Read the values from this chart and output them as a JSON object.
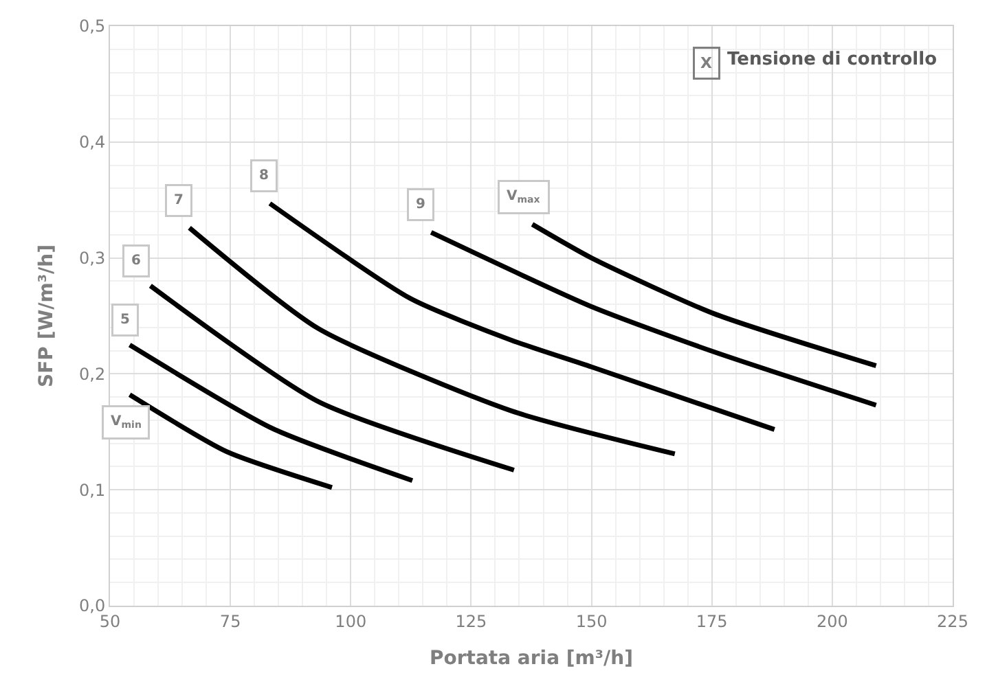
{
  "chart_data": {
    "type": "line",
    "xlabel": "Portata aria [m³/h]",
    "ylabel": "SFP [W/m³/h]",
    "xlim": [
      50,
      225
    ],
    "xticks": [
      50,
      75,
      100,
      125,
      150,
      175,
      200,
      225
    ],
    "ylim": [
      0,
      0.5
    ],
    "yticks": [
      {
        "value": 0,
        "label": "0,0"
      },
      {
        "value": 0.1,
        "label": "0,1"
      },
      {
        "value": 0.2,
        "label": "0,2"
      },
      {
        "value": 0.3,
        "label": "0,3"
      },
      {
        "value": 0.4,
        "label": "0,4"
      },
      {
        "value": 0.5,
        "label": "0,5"
      }
    ],
    "grid": true,
    "legend": false,
    "marker": "none",
    "line_style": "solid",
    "annotations": [
      "X",
      "Tensione di controllo"
    ],
    "series": [
      {
        "name": "V$_{min}$",
        "color": "#000000",
        "x": [
          54.1,
          74.2,
          96.1
        ],
        "values": [
          0.182,
          0.133,
          0.102
        ]
      },
      {
        "name": "5",
        "color": "#000000",
        "x": [
          54.1,
          83.7,
          112.8
        ],
        "values": [
          0.225,
          0.153,
          0.108
        ]
      },
      {
        "name": "6",
        "color": "#000000",
        "x": [
          58.4,
          93.3,
          133.9
        ],
        "values": [
          0.276,
          0.176,
          0.117
        ]
      },
      {
        "name": "7",
        "color": "#000000",
        "x": [
          66.5,
          93.3,
          133.4,
          167.3
        ],
        "values": [
          0.326,
          0.239,
          0.168,
          0.131
        ]
      },
      {
        "name": "8",
        "color": "#000000",
        "x": [
          83.2,
          112.4,
          133.4,
          150,
          188
        ],
        "values": [
          0.347,
          0.265,
          0.229,
          0.206,
          0.152
        ]
      },
      {
        "name": "9",
        "color": "#000000",
        "x": [
          116.7,
          150,
          175.4,
          209.1
        ],
        "values": [
          0.322,
          0.258,
          0.219,
          0.173
        ]
      },
      {
        "name": "V$_{max}$",
        "color": "#000000",
        "x": [
          137.7,
          150,
          175.4,
          209.1
        ],
        "values": [
          0.329,
          0.3,
          0.252,
          0.207
        ]
      }
    ]
  }
}
